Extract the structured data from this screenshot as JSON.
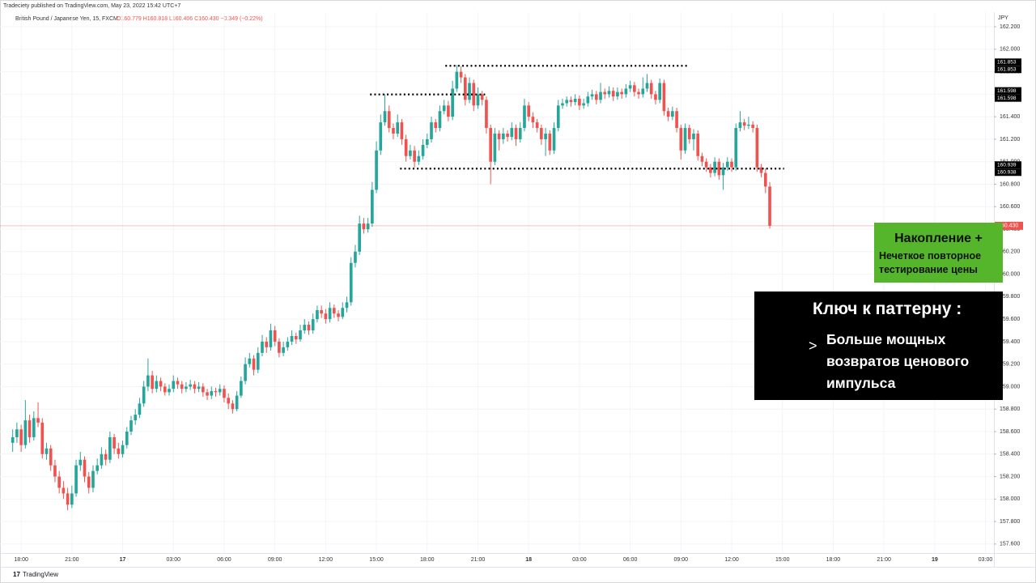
{
  "header": {
    "publisher": "Tradeciety published on TradingView.com, May 23, 2022 15:42 UTC+7",
    "symbol": "British Pound / Japanese Yen, 15, FXCM",
    "ohlc": "O160.779 H160.818 L160.406 C160.430 −0.349 (−0.22%)",
    "currency": "JPY",
    "footer": "TradingView"
  },
  "annotations": {
    "green_title": "Накопление +",
    "green_text": "Нечеткое повторное тестирование цены",
    "key_title": "Ключ к паттерну :",
    "key_bullet": ">",
    "key_text": "Больше мощных возвратов ценового импульса"
  },
  "chart_data": {
    "type": "candlestick",
    "up_color": "#26a69a",
    "down_color": "#ef5350",
    "ylim": [
      157.52,
      162.33
    ],
    "xlim": [
      -3,
      232
    ],
    "yticks": [
      {
        "value": 157.6,
        "label": "157.600"
      },
      {
        "value": 157.8,
        "label": "157.800"
      },
      {
        "value": 158.0,
        "label": "158.000"
      },
      {
        "value": 158.2,
        "label": "158.200"
      },
      {
        "value": 158.4,
        "label": "158.400"
      },
      {
        "value": 158.6,
        "label": "158.600"
      },
      {
        "value": 158.8,
        "label": "158.800"
      },
      {
        "value": 159.0,
        "label": "159.000"
      },
      {
        "value": 159.2,
        "label": "159.200"
      },
      {
        "value": 159.4,
        "label": "159.400"
      },
      {
        "value": 159.6,
        "label": "159.600"
      },
      {
        "value": 159.8,
        "label": "159.800"
      },
      {
        "value": 160.0,
        "label": "160.000"
      },
      {
        "value": 160.2,
        "label": "160.200"
      },
      {
        "value": 160.4,
        "label": "160.400"
      },
      {
        "value": 160.6,
        "label": "160.600"
      },
      {
        "value": 160.8,
        "label": "160.800"
      },
      {
        "value": 161.0,
        "label": "161.000"
      },
      {
        "value": 161.2,
        "label": "161.200"
      },
      {
        "value": 161.4,
        "label": "161.400"
      },
      {
        "value": 161.6,
        "label": "161.600"
      },
      {
        "value": 161.8,
        "label": "161.800"
      },
      {
        "value": 162.0,
        "label": "162.000"
      },
      {
        "value": 162.2,
        "label": "162.200"
      }
    ],
    "xticks": [
      {
        "value": 2,
        "label": "18:00"
      },
      {
        "value": 14,
        "label": "21:00"
      },
      {
        "value": 26,
        "label": "17"
      },
      {
        "value": 38,
        "label": "03:00"
      },
      {
        "value": 50,
        "label": "06:00"
      },
      {
        "value": 62,
        "label": "09:00"
      },
      {
        "value": 74,
        "label": "12:00"
      },
      {
        "value": 86,
        "label": "15:00"
      },
      {
        "value": 98,
        "label": "18:00"
      },
      {
        "value": 110,
        "label": "21:00"
      },
      {
        "value": 122,
        "label": "18"
      },
      {
        "value": 134,
        "label": "03:00"
      },
      {
        "value": 146,
        "label": "06:00"
      },
      {
        "value": 158,
        "label": "09:00"
      },
      {
        "value": 170,
        "label": "12:00"
      },
      {
        "value": 182,
        "label": "15:00"
      },
      {
        "value": 194,
        "label": "18:00"
      },
      {
        "value": 206,
        "label": "21:00"
      },
      {
        "value": 218,
        "label": "19"
      },
      {
        "value": 230,
        "label": "03:00"
      }
    ],
    "price_labels": [
      161.853,
      161.853,
      161.598,
      161.598,
      160.939,
      160.938
    ],
    "last_price": {
      "value": 160.43,
      "label": "160.430"
    },
    "candles": [
      [
        158.5,
        158.62,
        158.42,
        158.55
      ],
      [
        158.55,
        158.68,
        158.5,
        158.62
      ],
      [
        158.62,
        158.66,
        158.42,
        158.48
      ],
      [
        158.48,
        158.88,
        158.45,
        158.7
      ],
      [
        158.7,
        158.75,
        158.5,
        158.55
      ],
      [
        158.55,
        158.78,
        158.52,
        158.72
      ],
      [
        158.72,
        158.86,
        158.64,
        158.68
      ],
      [
        158.68,
        158.72,
        158.36,
        158.4
      ],
      [
        158.4,
        158.5,
        158.35,
        158.45
      ],
      [
        158.45,
        158.48,
        158.25,
        158.3
      ],
      [
        158.3,
        158.35,
        158.15,
        158.2
      ],
      [
        158.2,
        158.25,
        158.05,
        158.1
      ],
      [
        158.1,
        158.16,
        158.0,
        158.05
      ],
      [
        158.05,
        158.1,
        157.9,
        157.95
      ],
      [
        157.95,
        158.12,
        157.92,
        158.05
      ],
      [
        158.05,
        158.35,
        158.02,
        158.3
      ],
      [
        158.3,
        158.42,
        158.25,
        158.35
      ],
      [
        158.35,
        158.38,
        158.15,
        158.2
      ],
      [
        158.2,
        158.24,
        158.05,
        158.1
      ],
      [
        158.1,
        158.3,
        158.06,
        158.25
      ],
      [
        158.25,
        158.36,
        158.22,
        158.3
      ],
      [
        158.3,
        158.46,
        158.27,
        158.4
      ],
      [
        158.4,
        158.44,
        158.3,
        158.35
      ],
      [
        158.35,
        158.6,
        158.32,
        158.55
      ],
      [
        158.55,
        158.58,
        158.4,
        158.45
      ],
      [
        158.45,
        158.5,
        158.36,
        158.4
      ],
      [
        158.4,
        158.52,
        158.37,
        158.48
      ],
      [
        158.48,
        158.64,
        158.45,
        158.6
      ],
      [
        158.6,
        158.74,
        158.57,
        158.7
      ],
      [
        158.7,
        158.8,
        158.66,
        158.75
      ],
      [
        158.75,
        158.9,
        158.72,
        158.85
      ],
      [
        158.85,
        159.05,
        158.82,
        159.0
      ],
      [
        159.0,
        159.25,
        158.96,
        159.1
      ],
      [
        159.1,
        159.14,
        158.94,
        158.98
      ],
      [
        158.98,
        159.1,
        158.95,
        159.05
      ],
      [
        159.05,
        159.08,
        158.96,
        159.0
      ],
      [
        159.0,
        159.03,
        158.92,
        158.95
      ],
      [
        158.95,
        159.02,
        158.92,
        158.98
      ],
      [
        158.98,
        159.1,
        158.95,
        159.05
      ],
      [
        159.05,
        159.08,
        158.98,
        159.02
      ],
      [
        159.02,
        159.05,
        158.94,
        158.98
      ],
      [
        158.98,
        159.04,
        158.95,
        159.0
      ],
      [
        159.0,
        159.06,
        158.97,
        159.02
      ],
      [
        159.02,
        159.05,
        158.94,
        158.98
      ],
      [
        158.98,
        159.04,
        158.95,
        159.0
      ],
      [
        159.0,
        159.03,
        158.91,
        158.95
      ],
      [
        158.95,
        158.98,
        158.88,
        158.92
      ],
      [
        158.92,
        159.0,
        158.89,
        158.96
      ],
      [
        158.96,
        158.99,
        158.91,
        158.95
      ],
      [
        158.95,
        159.02,
        158.92,
        158.98
      ],
      [
        158.98,
        159.01,
        158.86,
        158.9
      ],
      [
        158.9,
        158.94,
        158.8,
        158.85
      ],
      [
        158.85,
        158.88,
        158.76,
        158.8
      ],
      [
        158.8,
        158.96,
        158.78,
        158.92
      ],
      [
        158.92,
        159.09,
        158.9,
        159.05
      ],
      [
        159.05,
        159.26,
        159.02,
        159.2
      ],
      [
        159.2,
        159.3,
        159.17,
        159.25
      ],
      [
        159.25,
        159.28,
        159.1,
        159.15
      ],
      [
        159.15,
        159.35,
        159.12,
        159.3
      ],
      [
        159.3,
        159.46,
        159.27,
        159.4
      ],
      [
        159.4,
        159.44,
        159.3,
        159.35
      ],
      [
        159.35,
        159.56,
        159.32,
        159.5
      ],
      [
        159.5,
        159.54,
        159.36,
        159.4
      ],
      [
        159.4,
        159.43,
        159.26,
        159.3
      ],
      [
        159.3,
        159.4,
        159.27,
        159.35
      ],
      [
        159.35,
        159.44,
        159.32,
        159.4
      ],
      [
        159.4,
        159.5,
        159.37,
        159.45
      ],
      [
        159.45,
        159.48,
        159.38,
        159.42
      ],
      [
        159.42,
        159.55,
        159.4,
        159.5
      ],
      [
        159.5,
        159.6,
        159.47,
        159.55
      ],
      [
        159.55,
        159.58,
        159.46,
        159.5
      ],
      [
        159.5,
        159.65,
        159.47,
        159.6
      ],
      [
        159.6,
        159.72,
        159.57,
        159.68
      ],
      [
        159.68,
        159.72,
        159.61,
        159.65
      ],
      [
        159.65,
        159.69,
        159.56,
        159.6
      ],
      [
        159.6,
        159.75,
        159.57,
        159.7
      ],
      [
        159.7,
        159.73,
        159.61,
        159.65
      ],
      [
        159.65,
        159.68,
        159.58,
        159.62
      ],
      [
        159.62,
        159.75,
        159.6,
        159.7
      ],
      [
        159.7,
        159.8,
        159.66,
        159.75
      ],
      [
        159.75,
        160.15,
        159.72,
        160.1
      ],
      [
        160.1,
        160.26,
        160.06,
        160.2
      ],
      [
        160.2,
        160.52,
        160.17,
        160.45
      ],
      [
        160.45,
        160.5,
        160.36,
        160.4
      ],
      [
        160.4,
        160.5,
        160.37,
        160.45
      ],
      [
        160.45,
        160.82,
        160.42,
        160.75
      ],
      [
        160.75,
        161.18,
        160.72,
        161.1
      ],
      [
        161.1,
        161.42,
        161.06,
        161.35
      ],
      [
        161.35,
        161.6,
        161.32,
        161.45
      ],
      [
        161.45,
        161.5,
        161.26,
        161.3
      ],
      [
        161.3,
        161.34,
        161.2,
        161.25
      ],
      [
        161.25,
        161.42,
        161.22,
        161.35
      ],
      [
        161.35,
        161.38,
        161.15,
        161.2
      ],
      [
        161.2,
        161.24,
        161.0,
        161.05
      ],
      [
        161.05,
        161.15,
        161.02,
        161.1
      ],
      [
        161.1,
        161.14,
        160.95,
        161.0
      ],
      [
        161.0,
        161.1,
        160.97,
        161.05
      ],
      [
        161.05,
        161.2,
        161.02,
        161.15
      ],
      [
        161.15,
        161.25,
        161.12,
        161.2
      ],
      [
        161.2,
        161.4,
        161.17,
        161.35
      ],
      [
        161.35,
        161.38,
        161.26,
        161.3
      ],
      [
        161.3,
        161.5,
        161.27,
        161.45
      ],
      [
        161.45,
        161.55,
        161.42,
        161.5
      ],
      [
        161.5,
        161.54,
        161.36,
        161.4
      ],
      [
        161.4,
        161.72,
        161.37,
        161.65
      ],
      [
        161.65,
        161.86,
        161.62,
        161.8
      ],
      [
        161.8,
        161.85,
        161.7,
        161.75
      ],
      [
        161.75,
        161.78,
        161.5,
        161.55
      ],
      [
        161.55,
        161.75,
        161.52,
        161.7
      ],
      [
        161.7,
        161.73,
        161.45,
        161.5
      ],
      [
        161.5,
        161.66,
        161.47,
        161.6
      ],
      [
        161.6,
        161.63,
        161.5,
        161.55
      ],
      [
        161.55,
        161.58,
        161.25,
        161.3
      ],
      [
        161.3,
        161.33,
        160.8,
        161.0
      ],
      [
        161.0,
        161.3,
        160.97,
        161.25
      ],
      [
        161.25,
        161.28,
        161.1,
        161.2
      ],
      [
        161.2,
        161.3,
        161.16,
        161.25
      ],
      [
        161.25,
        161.28,
        161.18,
        161.22
      ],
      [
        161.22,
        161.35,
        161.19,
        161.3
      ],
      [
        161.3,
        161.33,
        161.14,
        161.2
      ],
      [
        161.2,
        161.35,
        161.17,
        161.3
      ],
      [
        161.3,
        161.56,
        161.27,
        161.5
      ],
      [
        161.5,
        161.53,
        161.36,
        161.4
      ],
      [
        161.4,
        161.44,
        161.3,
        161.35
      ],
      [
        161.35,
        161.38,
        161.26,
        161.3
      ],
      [
        161.3,
        161.33,
        161.15,
        161.2
      ],
      [
        161.2,
        161.3,
        161.05,
        161.25
      ],
      [
        161.25,
        161.28,
        161.06,
        161.1
      ],
      [
        161.1,
        161.35,
        161.07,
        161.3
      ],
      [
        161.3,
        161.55,
        161.27,
        161.5
      ],
      [
        161.5,
        161.56,
        161.47,
        161.52
      ],
      [
        161.52,
        161.58,
        161.49,
        161.55
      ],
      [
        161.55,
        161.58,
        161.49,
        161.53
      ],
      [
        161.53,
        161.6,
        161.5,
        161.56
      ],
      [
        161.56,
        161.59,
        161.46,
        161.5
      ],
      [
        161.5,
        161.56,
        161.47,
        161.52
      ],
      [
        161.52,
        161.62,
        161.49,
        161.58
      ],
      [
        161.58,
        161.64,
        161.55,
        161.6
      ],
      [
        161.6,
        161.63,
        161.51,
        161.55
      ],
      [
        161.55,
        161.7,
        161.52,
        161.62
      ],
      [
        161.62,
        161.65,
        161.56,
        161.6
      ],
      [
        161.6,
        161.67,
        161.57,
        161.63
      ],
      [
        161.63,
        161.66,
        161.54,
        161.58
      ],
      [
        161.58,
        161.66,
        161.55,
        161.62
      ],
      [
        161.62,
        161.65,
        161.56,
        161.6
      ],
      [
        161.6,
        161.69,
        161.57,
        161.65
      ],
      [
        161.65,
        161.72,
        161.62,
        161.68
      ],
      [
        161.68,
        161.71,
        161.58,
        161.62
      ],
      [
        161.62,
        161.65,
        161.56,
        161.6
      ],
      [
        161.6,
        161.75,
        161.57,
        161.65
      ],
      [
        161.65,
        161.78,
        161.62,
        161.7
      ],
      [
        161.7,
        161.73,
        161.56,
        161.6
      ],
      [
        161.6,
        161.63,
        161.51,
        161.55
      ],
      [
        161.55,
        161.74,
        161.52,
        161.7
      ],
      [
        161.7,
        161.73,
        161.41,
        161.45
      ],
      [
        161.45,
        161.48,
        161.36,
        161.4
      ],
      [
        161.4,
        161.49,
        161.37,
        161.45
      ],
      [
        161.45,
        161.48,
        161.26,
        161.3
      ],
      [
        161.3,
        161.33,
        161.02,
        161.1
      ],
      [
        161.1,
        161.34,
        161.07,
        161.3
      ],
      [
        161.3,
        161.33,
        161.16,
        161.2
      ],
      [
        161.2,
        161.29,
        161.1,
        161.25
      ],
      [
        161.25,
        161.28,
        161.01,
        161.05
      ],
      [
        161.05,
        161.08,
        160.96,
        161.0
      ],
      [
        161.0,
        161.03,
        160.91,
        160.95
      ],
      [
        160.95,
        160.98,
        160.86,
        160.9
      ],
      [
        160.9,
        161.04,
        160.87,
        161.0
      ],
      [
        161.0,
        161.03,
        160.84,
        160.88
      ],
      [
        160.88,
        160.99,
        160.75,
        160.95
      ],
      [
        160.95,
        161.04,
        160.92,
        161.0
      ],
      [
        161.0,
        161.03,
        160.91,
        160.95
      ],
      [
        160.95,
        161.34,
        160.92,
        161.3
      ],
      [
        161.3,
        161.45,
        161.27,
        161.35
      ],
      [
        161.35,
        161.38,
        161.28,
        161.32
      ],
      [
        161.32,
        161.4,
        161.29,
        161.33
      ],
      [
        161.33,
        161.36,
        161.26,
        161.3
      ],
      [
        161.3,
        161.33,
        160.91,
        160.95
      ],
      [
        160.95,
        160.98,
        160.86,
        160.9
      ],
      [
        160.9,
        160.94,
        160.72,
        160.779
      ],
      [
        160.779,
        160.818,
        160.406,
        160.43
      ]
    ]
  }
}
